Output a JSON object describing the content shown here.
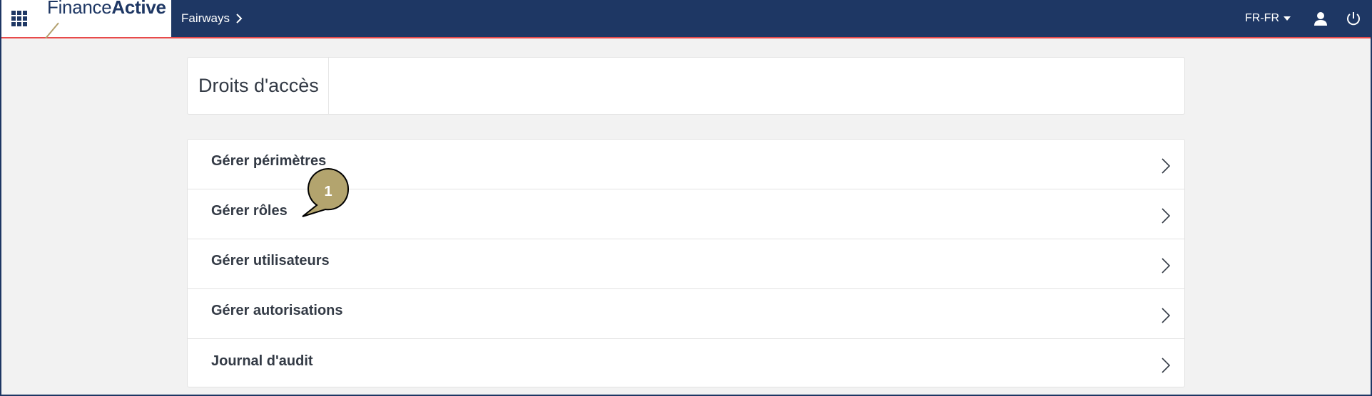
{
  "header": {
    "logo_regular": "Finance",
    "logo_bold": "Active",
    "breadcrumb": "Fairways",
    "language": "FR-FR"
  },
  "page": {
    "title": "Droits d'accès"
  },
  "menu": {
    "items": [
      {
        "label": "Gérer périmètres"
      },
      {
        "label": "Gérer rôles"
      },
      {
        "label": "Gérer utilisateurs"
      },
      {
        "label": "Gérer autorisations"
      },
      {
        "label": "Journal d'audit"
      }
    ]
  },
  "annotation": {
    "number": "1",
    "color": "#b3a46e"
  },
  "colors": {
    "navbar": "#1e3764",
    "accent_line": "#e84a4a"
  }
}
